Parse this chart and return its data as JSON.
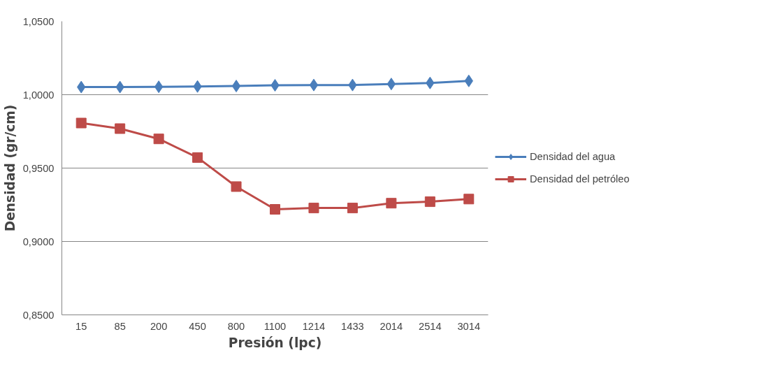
{
  "chart_data": {
    "type": "line",
    "xlabel": "Presión (lpc)",
    "ylabel": "Densidad (gr/cm)",
    "categories": [
      "15",
      "85",
      "200",
      "450",
      "800",
      "1100",
      "1214",
      "1433",
      "2014",
      "2514",
      "3014"
    ],
    "series": [
      {
        "name": "Densidad del agua",
        "color": "#4a7ebb",
        "marker": "diamond",
        "values": [
          1.0052,
          1.0052,
          1.0054,
          1.0056,
          1.0059,
          1.0064,
          1.0066,
          1.0066,
          1.0073,
          1.008,
          1.0094
        ]
      },
      {
        "name": "Densidad del petróleo",
        "color": "#be4b48",
        "marker": "square",
        "values": [
          0.9807,
          0.9769,
          0.9699,
          0.9572,
          0.9374,
          0.9219,
          0.9228,
          0.9228,
          0.9261,
          0.9271,
          0.9289
        ]
      }
    ],
    "ylim": [
      0.85,
      1.05
    ],
    "yticks": [
      {
        "value": 0.85,
        "label": "0,8500"
      },
      {
        "value": 0.9,
        "label": "0,9000"
      },
      {
        "value": 0.95,
        "label": "0,9500"
      },
      {
        "value": 1.0,
        "label": "1,0000"
      },
      {
        "value": 1.05,
        "label": "1,0500"
      }
    ],
    "grid": "y",
    "legend": "right"
  }
}
